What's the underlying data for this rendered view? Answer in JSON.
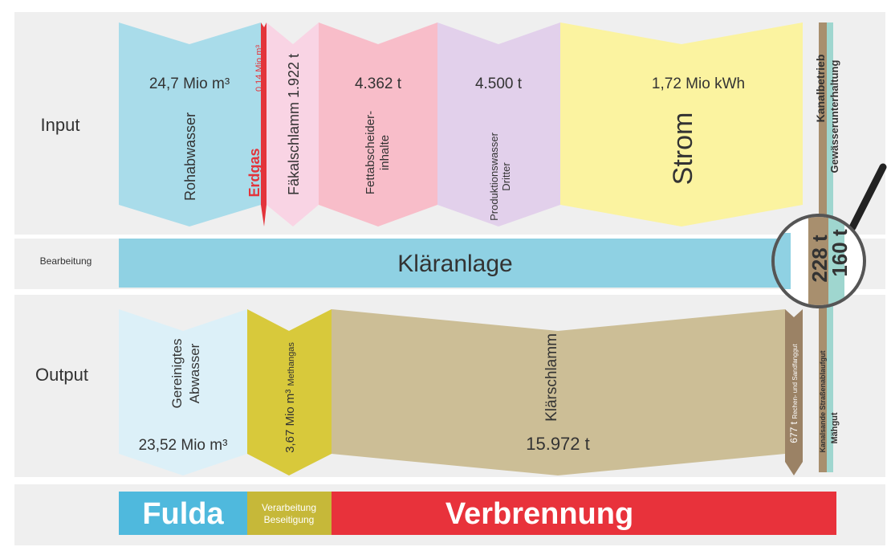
{
  "rows": {
    "input": "Input",
    "processing": "Bearbeitung",
    "output": "Output"
  },
  "input": [
    {
      "label": "Rohabwasser",
      "amount": "24,7 Mio m³"
    },
    {
      "label": "Erdgas",
      "amount": "0,14 Mio m³"
    },
    {
      "label": "Fäkalschlamm",
      "amount": "1.922 t"
    },
    {
      "label": [
        "Fettabscheider-",
        "inhalte"
      ],
      "amount": "4.362 t"
    },
    {
      "label": [
        "Produktionswasser",
        "Dritter"
      ],
      "amount": "4.500 t"
    },
    {
      "label": "Strom",
      "amount": "1,72 Mio kWh"
    },
    {
      "label": "Kanalbetrieb"
    },
    {
      "label": "Gewässerunterhaltung"
    }
  ],
  "processing": {
    "label": "Kläranlage"
  },
  "magnifier": [
    "228 t",
    "160 t"
  ],
  "output": [
    {
      "label": [
        "Gereinigtes",
        "Abwasser"
      ],
      "amount": "23,52 Mio m³"
    },
    {
      "label": "Methangas",
      "amount": "3,67 Mio m³"
    },
    {
      "label": "Klärschlamm",
      "amount": "15.972 t"
    },
    {
      "label": "Rechen- und Sandfanggut",
      "amount": "677 t"
    },
    {
      "label": "Kanalsande Straßenablaufgut"
    },
    {
      "label": "Mähgut"
    }
  ],
  "disposal": [
    {
      "label": "Fulda"
    },
    {
      "label": [
        "Verarbeitung",
        "Beseitigung"
      ]
    },
    {
      "label": "Verbrennung"
    }
  ]
}
